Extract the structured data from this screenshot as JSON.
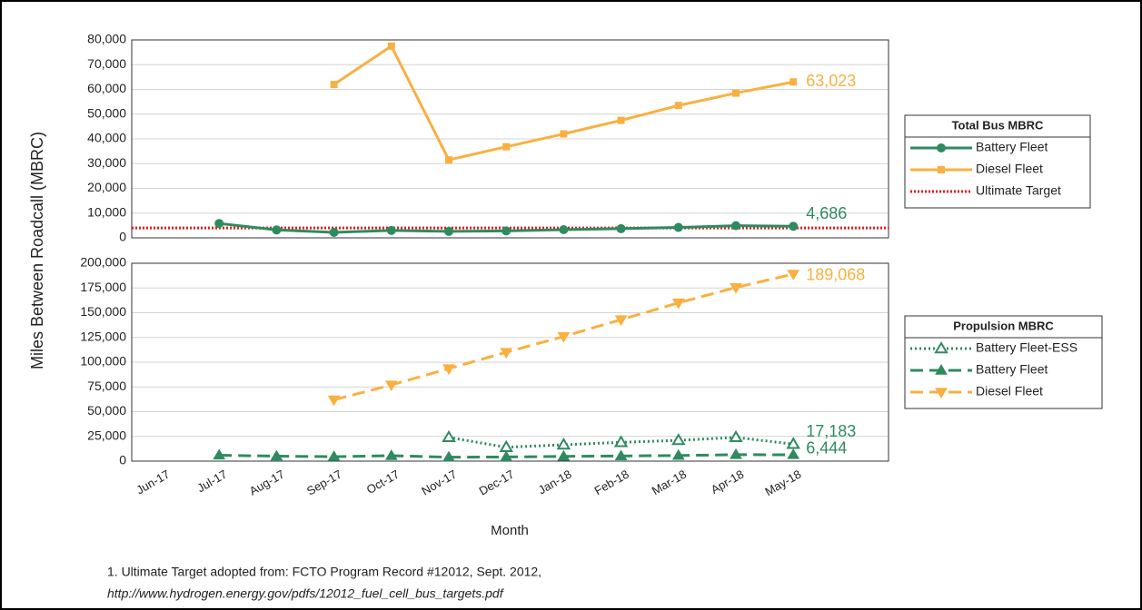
{
  "y_label": "Miles Between Roadcall (MBRC)",
  "x_label": "Month",
  "footnotes": [
    "1. Ultimate Target adopted from: FCTO Program Record #12012, Sept. 2012,",
    "http://www.hydrogen.energy.gov/pdfs/12012_fuel_cell_bus_targets.pdf"
  ],
  "chart_data": [
    {
      "type": "line",
      "legend_title": "Total Bus MBRC",
      "grid": true,
      "ylim": [
        0,
        80000
      ],
      "yticks": [
        0,
        {
          "value": 10000,
          "label": "10,000"
        },
        {
          "value": 20000,
          "label": "20,000"
        },
        {
          "value": 30000,
          "label": "30,000"
        },
        {
          "value": 40000,
          "label": "40,000"
        },
        {
          "value": 50000,
          "label": "50,000"
        },
        {
          "value": 60000,
          "label": "60,000"
        },
        {
          "value": 70000,
          "label": "70,000"
        },
        {
          "value": 80000,
          "label": "80,000"
        }
      ],
      "series": [
        {
          "name": "Battery Fleet",
          "color": "#2e8b5f",
          "marker": "circle",
          "dash": "solid",
          "values": [
            null,
            5800,
            3200,
            2200,
            3000,
            2600,
            2800,
            3300,
            3700,
            4200,
            4900,
            4686
          ],
          "end_label": "4,686"
        },
        {
          "name": "Diesel Fleet",
          "color": "#f9b040",
          "marker": "square",
          "dash": "solid",
          "values": [
            null,
            null,
            null,
            62000,
            77500,
            31500,
            36800,
            42000,
            47500,
            53500,
            58500,
            63023
          ],
          "end_label": "63,023"
        }
      ],
      "reference_line": {
        "name": "Ultimate Target",
        "color": "#e31a1c",
        "value": 4000
      }
    },
    {
      "type": "line",
      "legend_title": "Propulsion MBRC",
      "grid": true,
      "categories": [
        "Jun-17",
        "Jul-17",
        "Aug-17",
        "Sep-17",
        "Oct-17",
        "Nov-17",
        "Dec-17",
        "Jan-18",
        "Feb-18",
        "Mar-18",
        "Apr-18",
        "May-18"
      ],
      "ylim": [
        0,
        200000
      ],
      "yticks": [
        0,
        {
          "value": 25000,
          "label": "25,000"
        },
        {
          "value": 50000,
          "label": "50,000"
        },
        {
          "value": 75000,
          "label": "75,000"
        },
        {
          "value": 100000,
          "label": "100,000"
        },
        {
          "value": 125000,
          "label": "125,000"
        },
        {
          "value": 150000,
          "label": "150,000"
        },
        {
          "value": 175000,
          "label": "175,000"
        },
        {
          "value": 200000,
          "label": "200,000"
        }
      ],
      "series": [
        {
          "name": "Battery Fleet-ESS",
          "color": "#2e8b5f",
          "marker": "triangle-open",
          "dash": "dotted",
          "values": [
            null,
            null,
            null,
            null,
            null,
            24000,
            14000,
            16500,
            19000,
            21000,
            24000,
            17183
          ],
          "end_label": "17,183"
        },
        {
          "name": "Battery Fleet",
          "color": "#2e8b5f",
          "marker": "triangle",
          "dash": "dashed",
          "values": [
            null,
            6000,
            5000,
            4500,
            5500,
            4000,
            4200,
            4800,
            5200,
            5700,
            6500,
            6444
          ],
          "end_label": "6,444"
        },
        {
          "name": "Diesel Fleet",
          "color": "#f9b040",
          "marker": "triangle-down",
          "dash": "dashed",
          "values": [
            null,
            null,
            null,
            62000,
            77000,
            93500,
            110000,
            126000,
            143000,
            160000,
            175500,
            189068
          ],
          "end_label": "189,068"
        }
      ]
    }
  ]
}
